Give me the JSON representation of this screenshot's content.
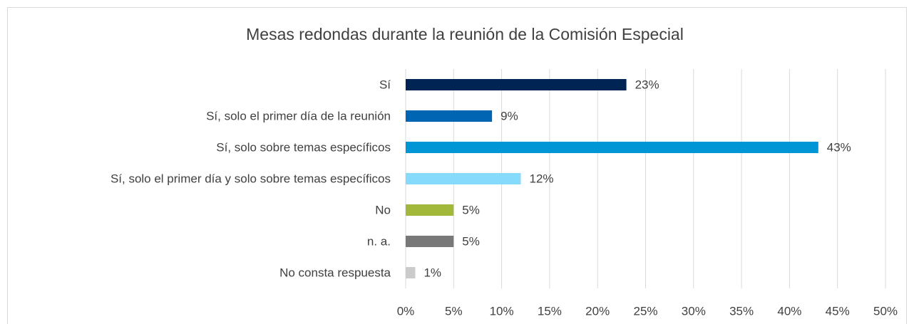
{
  "chart_data": {
    "type": "bar",
    "orientation": "horizontal",
    "title": "Mesas redondas durante la reunión de la Comisión Especial",
    "categories": [
      "Sí",
      "Sí, solo el primer día de la reunión",
      "Sí, solo sobre temas específicos",
      "Sí, solo el primer día y solo sobre temas específicos",
      "No",
      "n. a.",
      "No consta respuesta"
    ],
    "values": [
      23,
      9,
      43,
      12,
      5,
      5,
      1
    ],
    "value_labels": [
      "23%",
      "9%",
      "43%",
      "12%",
      "5%",
      "5%",
      "1%"
    ],
    "colors": [
      "#002554",
      "#0066b3",
      "#0095d5",
      "#86dafc",
      "#a1b83b",
      "#787878",
      "#cbcbcb"
    ],
    "xlim": [
      0,
      50
    ],
    "xticks": [
      {
        "value": 0,
        "label": "0%"
      },
      {
        "value": 5,
        "label": "5%"
      },
      {
        "value": 10,
        "label": "10%"
      },
      {
        "value": 15,
        "label": "15%"
      },
      {
        "value": 20,
        "label": "20%"
      },
      {
        "value": 25,
        "label": "25%"
      },
      {
        "value": 30,
        "label": "30%"
      },
      {
        "value": 35,
        "label": "35%"
      },
      {
        "value": 40,
        "label": "40%"
      },
      {
        "value": 45,
        "label": "45%"
      },
      {
        "value": 50,
        "label": "50%"
      }
    ],
    "grid": true
  }
}
